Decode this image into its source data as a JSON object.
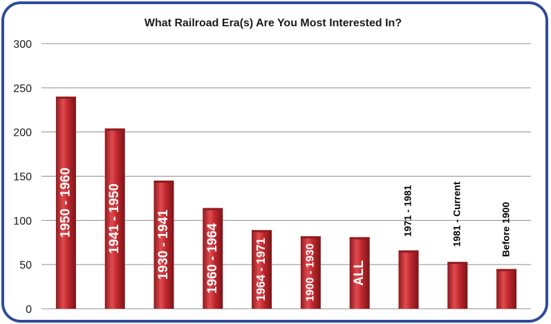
{
  "chart_data": {
    "type": "bar",
    "title": "What Railroad Era(s) Are You Most Interested In?",
    "xlabel": "",
    "ylabel": "",
    "ylim": [
      0,
      300
    ],
    "yticks": [
      0,
      50,
      100,
      150,
      200,
      250,
      300
    ],
    "grid": true,
    "legend": "none",
    "categories": [
      "1950 - 1960",
      "1941 - 1950",
      "1930 - 1941",
      "1960 - 1964",
      "1964 - 1971",
      "1900 - 1930",
      "ALL",
      "1971 - 1981",
      "1981 - Current",
      "Before 1900"
    ],
    "values": [
      240,
      204,
      145,
      114,
      89,
      82,
      81,
      66,
      53,
      45
    ],
    "label_position": [
      "inside",
      "inside",
      "inside",
      "inside",
      "inside",
      "inside",
      "inside",
      "outside",
      "outside",
      "outside"
    ],
    "colors": {
      "bar": "#c0272d",
      "bar_dark": "#8e1a1e",
      "bar_light": "#e04b4f",
      "border": "#2e4a9a",
      "grid": "#8c8c8c",
      "label_inside": "#ffffff",
      "label_outside": "#000000"
    }
  }
}
